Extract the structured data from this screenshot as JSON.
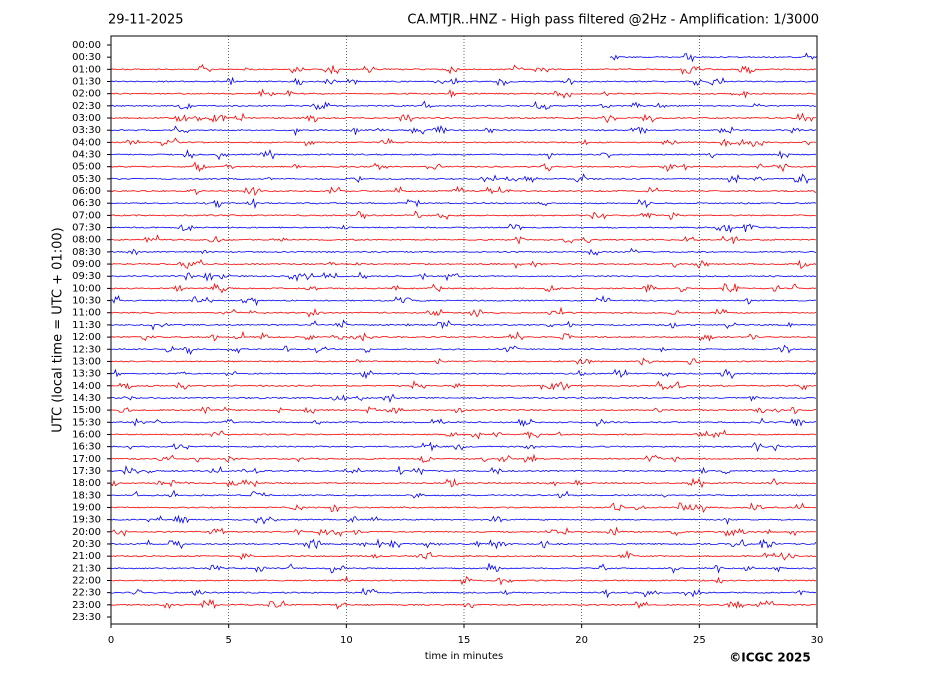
{
  "chart_data": {
    "type": "helicorder",
    "date": "29-11-2025",
    "title": "CA.MTJR..HNZ - High pass filtered @2Hz - Amplification: 1/3000",
    "ylabel": "UTC (local time = UTC + 01:00)",
    "xlabel": "time in minutes",
    "copyright": "©ICGC 2025",
    "categories": [
      "00:00",
      "00:30",
      "01:00",
      "01:30",
      "02:00",
      "02:30",
      "03:00",
      "03:30",
      "04:00",
      "04:30",
      "05:00",
      "05:30",
      "06:00",
      "06:30",
      "07:00",
      "07:30",
      "08:00",
      "08:30",
      "09:00",
      "09:30",
      "10:00",
      "10:30",
      "11:00",
      "11:30",
      "12:00",
      "12:30",
      "13:00",
      "13:30",
      "14:00",
      "14:30",
      "15:00",
      "15:30",
      "16:00",
      "16:30",
      "17:00",
      "17:30",
      "18:00",
      "18:30",
      "19:00",
      "19:30",
      "20:00",
      "20:30",
      "21:00",
      "21:30",
      "22:00",
      "22:30",
      "23:00",
      "23:30"
    ],
    "trace_colors": [
      null,
      "#0000ff",
      "#ff0000",
      "#0000ff",
      "#ff0000",
      "#0000ff",
      "#ff0000",
      "#0000ff",
      "#ff0000",
      "#0000ff",
      "#ff0000",
      "#0000ff",
      "#ff0000",
      "#0000ff",
      "#ff0000",
      "#0000ff",
      "#ff0000",
      "#0000ff",
      "#ff0000",
      "#0000ff",
      "#ff0000",
      "#0000ff",
      "#ff0000",
      "#0000ff",
      "#ff0000",
      "#0000ff",
      "#ff0000",
      "#0000ff",
      "#ff0000",
      "#0000ff",
      "#ff0000",
      "#0000ff",
      "#ff0000",
      "#0000ff",
      "#ff0000",
      "#0000ff",
      "#ff0000",
      "#0000ff",
      "#ff0000",
      "#0000ff",
      "#ff0000",
      "#0000ff",
      "#ff0000",
      "#0000ff",
      "#ff0000",
      "#0000ff",
      "#ff0000",
      null
    ],
    "first_trace_start": 21.2,
    "xlim": [
      0,
      30
    ],
    "xticks": [
      0,
      5,
      10,
      15,
      20,
      25,
      30
    ],
    "grid": true
  }
}
